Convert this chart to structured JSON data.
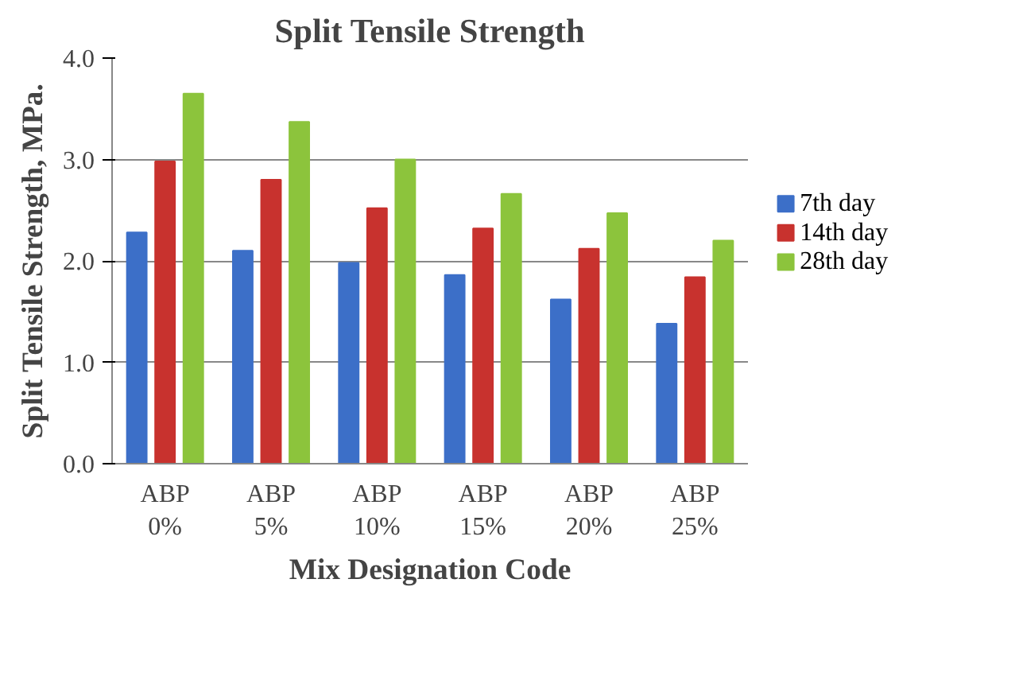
{
  "chart_data": {
    "type": "bar",
    "title": "Split Tensile Strength",
    "xlabel": "Mix Designation Code",
    "ylabel": "Split Tensile Strength, MPa.",
    "categories": [
      "ABP\n0%",
      "ABP\n5%",
      "ABP\n10%",
      "ABP\n15%",
      "ABP\n20%",
      "ABP\n25%"
    ],
    "series": [
      {
        "name": "7th day",
        "color": "#3c6fc8",
        "values": [
          2.28,
          2.1,
          1.98,
          1.86,
          1.62,
          1.38
        ]
      },
      {
        "name": "14th day",
        "color": "#c8322e",
        "values": [
          2.98,
          2.8,
          2.52,
          2.32,
          2.12,
          1.84
        ]
      },
      {
        "name": "28th day",
        "color": "#8cc43c",
        "values": [
          3.65,
          3.37,
          3.0,
          2.66,
          2.47,
          2.2
        ]
      }
    ],
    "ylim": [
      0,
      4
    ],
    "yticks": [
      {
        "value": 0,
        "label": "0.0"
      },
      {
        "value": 1,
        "label": "1.0"
      },
      {
        "value": 2,
        "label": "2.0"
      },
      {
        "value": 3,
        "label": "3.0"
      },
      {
        "value": 4,
        "label": "4.0"
      }
    ],
    "grid": "y",
    "legend": "right"
  }
}
